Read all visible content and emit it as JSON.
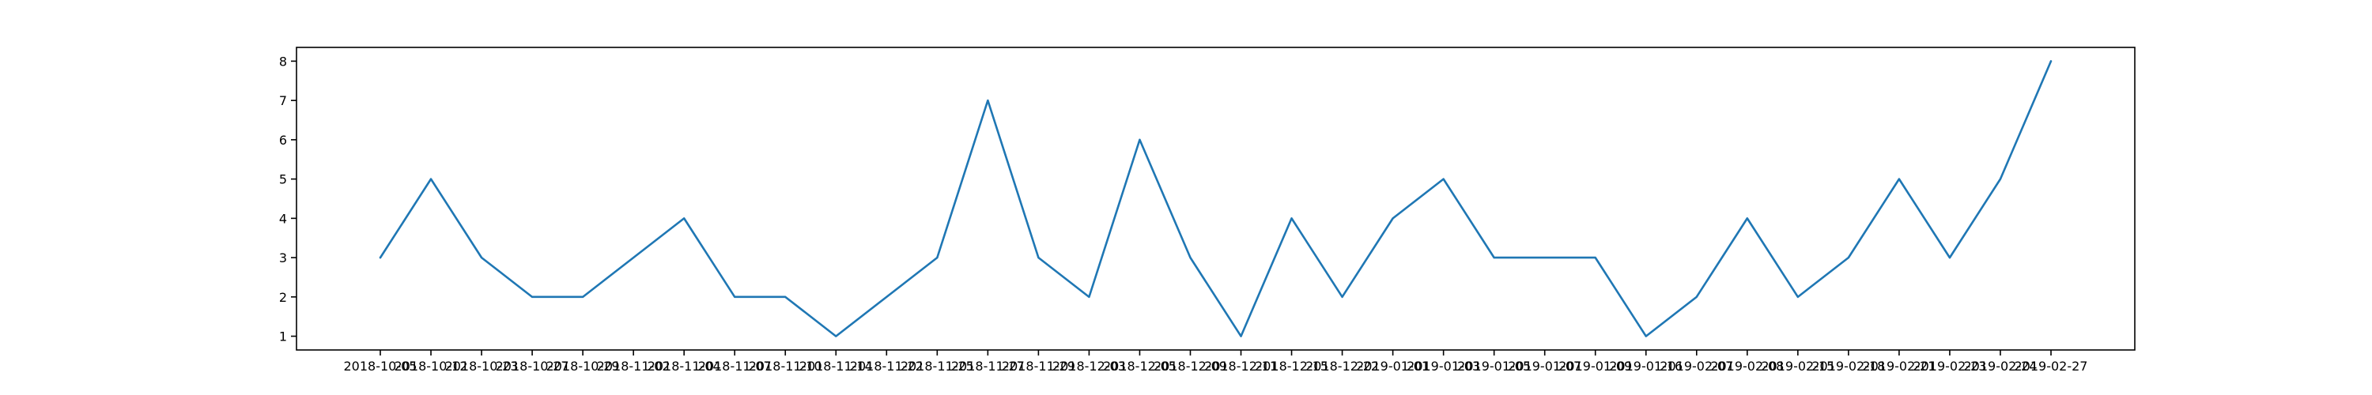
{
  "chart_data": {
    "type": "line",
    "title": "",
    "xlabel": "",
    "ylabel": "",
    "x": [
      "2018-10-05",
      "2018-10-12",
      "2018-10-23",
      "2018-10-27",
      "2018-10-29",
      "2018-11-02",
      "2018-11-04",
      "2018-11-07",
      "2018-11-10",
      "2018-11-14",
      "2018-11-22",
      "2018-11-25",
      "2018-11-27",
      "2018-11-29",
      "2018-12-03",
      "2018-12-05",
      "2018-12-09",
      "2018-12-11",
      "2018-12-15",
      "2018-12-22",
      "2019-01-01",
      "2019-01-03",
      "2019-01-05",
      "2019-01-07",
      "2019-01-09",
      "2019-01-16",
      "2019-02-07",
      "2019-02-08",
      "2019-02-15",
      "2019-02-18",
      "2019-02-21",
      "2019-02-23",
      "2019-02-24",
      "2019-02-27"
    ],
    "series": [
      {
        "values": [
          3,
          5,
          3,
          2,
          2,
          3,
          4,
          2,
          2,
          1,
          2,
          3,
          7,
          3,
          2,
          6,
          3,
          1,
          4,
          2,
          4,
          5,
          3,
          3,
          3,
          1,
          2,
          4,
          2,
          3,
          5,
          3,
          5,
          8
        ],
        "color": "#1f77b4"
      }
    ],
    "yticks": [
      1,
      2,
      3,
      4,
      5,
      6,
      7,
      8
    ],
    "ylim": [
      0.65,
      8.35
    ],
    "grid": false,
    "legend": "none"
  }
}
